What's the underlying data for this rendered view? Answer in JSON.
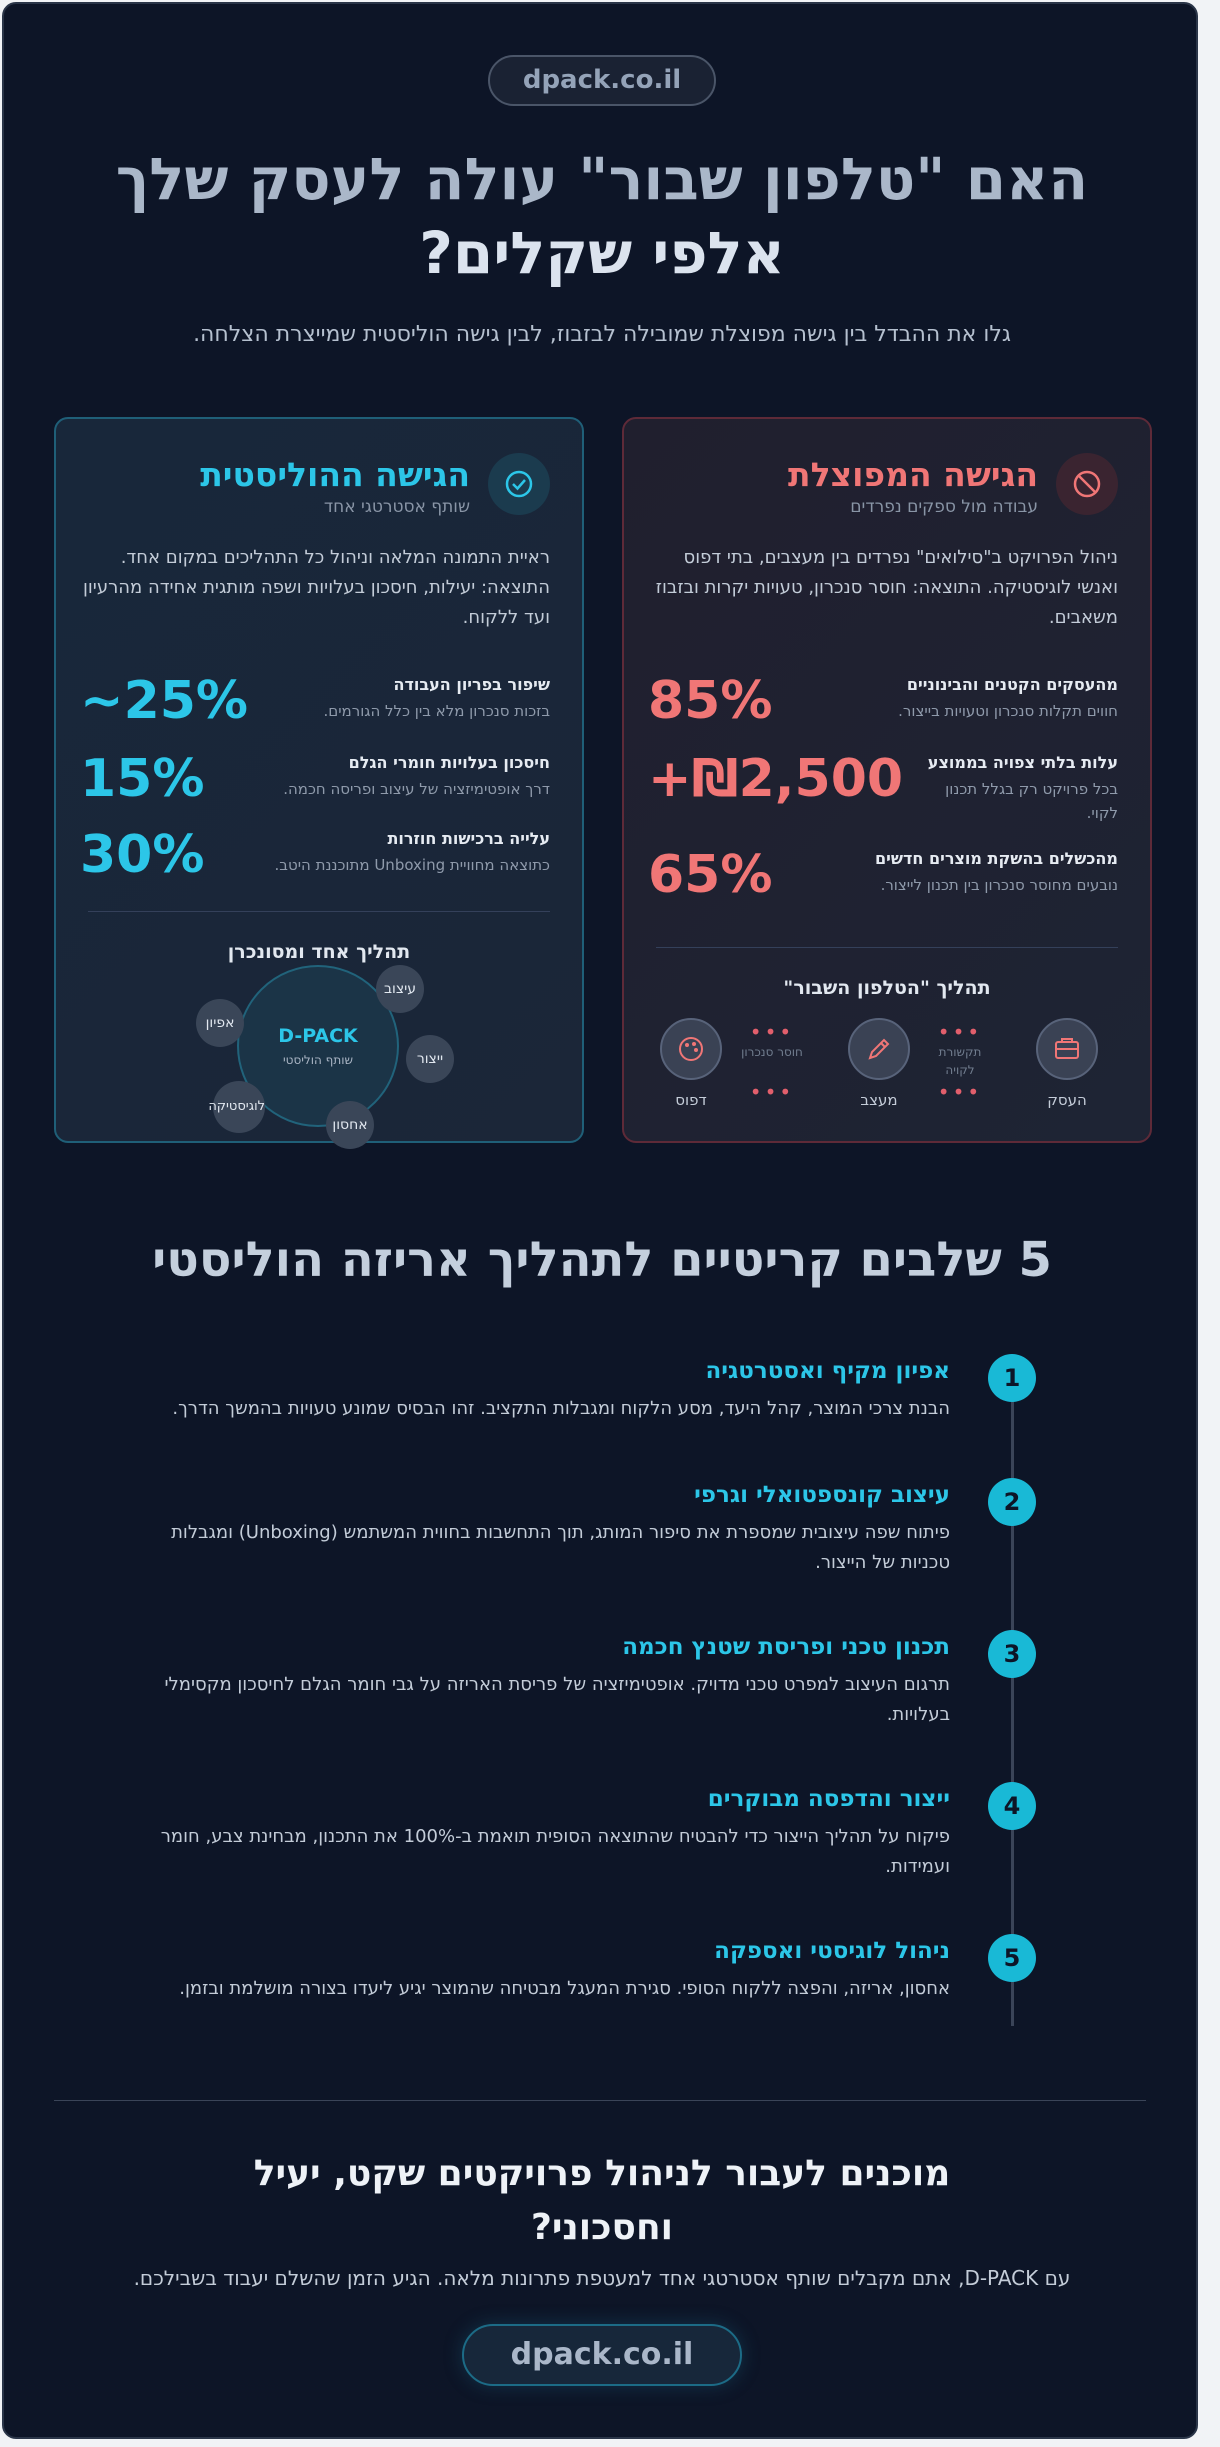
{
  "header": {
    "domain": "dpack.co.il",
    "title_part1": "האם \"טלפון שבור\" עולה לעסק שלך",
    "title_part2": "אלפי שקלים?",
    "subtitle": "גלו את ההבדל בין גישה מפוצלת שמובילה לבזבוז, לבין גישה הוליסטית שמייצרת הצלחה."
  },
  "holistic": {
    "title": "הגישה ההוליסטית",
    "subtitle": "שותף אסטרטגי אחד",
    "description": "ראיית התמונה המלאה וניהול כל התהליכים במקום אחד. התוצאה: יעילות, חיסכון בעלויות ושפה מותגית אחידה מהרעיון ועד ללקוח.",
    "icon": "check-circle-icon",
    "stats": [
      {
        "value": "~25%",
        "title": "שיפור בפריון העבודה",
        "desc": "בזכות סנכרון מלא בין כלל הגורמים."
      },
      {
        "value": "15%",
        "title": "חיסכון בעלויות חומרי הגלם",
        "desc": "דרך אופטימיזציה של עיצוב ופריסה חכמה."
      },
      {
        "value": "30%",
        "title": "עלייה ברכישות חוזרות",
        "desc": "כתוצאה מחוויית Unboxing מתוכננת היטב."
      }
    ],
    "process_title": "תהליך אחד ומסונכרן",
    "hub_name": "D-PACK",
    "hub_sub": "שותף הוליסטי",
    "satellites": [
      "עיצוב",
      "ייצור",
      "אחסון",
      "לוגיסטיקה",
      "אפיון"
    ]
  },
  "fragmented": {
    "title": "הגישה המפוצלת",
    "subtitle": "עבודה מול ספקים נפרדים",
    "description": "ניהול הפרויקט ב\"סילואים\" נפרדים בין מעצבים, בתי דפוס ואנשי לוגיסטיקה. התוצאה: חוסר סנכרון, טעויות יקרות ובזבוז משאבים.",
    "icon": "ban-icon",
    "stats": [
      {
        "value": "85%",
        "title": "מהעסקים הקטנים והבינוניים",
        "desc": "חווים תקלות סנכרון וטעויות בייצור."
      },
      {
        "value": "+₪2,500",
        "title": "עלות בלתי צפויה בממוצע",
        "desc": "בכל פרויקט רק בגלל תכנון לקוי."
      },
      {
        "value": "65%",
        "title": "מהכשלים בהשקת מוצרים חדשים",
        "desc": "נובעים מחוסר סנכרון בין תכנון לייצור."
      }
    ],
    "process_title": "תהליך \"הטלפון השבור\"",
    "steps": [
      {
        "label": "העסק",
        "icon": "briefcase-icon"
      },
      {
        "label": "מעצב",
        "icon": "pencil-icon"
      },
      {
        "label": "דפוס",
        "icon": "palette-icon"
      }
    ],
    "gaps": [
      "תקשורת לקויה",
      "חוסר סנכרון"
    ]
  },
  "steps_section": {
    "title": "5 שלבים קריטיים לתהליך אריזה הוליסטי",
    "steps": [
      {
        "num": "1",
        "title": "אפיון מקיף ואסטרטגיה",
        "desc": "הבנת צרכי המוצר, קהל היעד, מסע הלקוח ומגבלות התקציב. זהו הבסיס שמונע טעויות בהמשך הדרך."
      },
      {
        "num": "2",
        "title": "עיצוב קונספטואלי וגרפי",
        "desc": "פיתוח שפה עיצובית שמספרת את סיפור המותג, תוך התחשבות בחווית המשתמש (Unboxing) ומגבלות טכניות של הייצור."
      },
      {
        "num": "3",
        "title": "תכנון טכני ופריסת שטנץ חכמה",
        "desc": "תרגום העיצוב למפרט טכני מדויק. אופטימיזציה של פריסת האריזה על גבי חומר הגלם לחיסכון מקסימלי בעלויות."
      },
      {
        "num": "4",
        "title": "ייצור והדפסה מבוקרים",
        "desc": "פיקוח על תהליך הייצור כדי להבטיח שהתוצאה הסופית תואמת ב-100% את התכנון, מבחינת צבע, חומר ועמידות."
      },
      {
        "num": "5",
        "title": "ניהול לוגיסטי ואספקה",
        "desc": "אחסון, אריזה, והפצה ללקוח הסופי. סגירת המעגל מבטיחה שהמוצר יגיע ליעדו בצורה מושלמת ובזמן."
      }
    ]
  },
  "cta": {
    "title": "מוכנים לעבור לניהול פרויקטים שקט, יעיל וחסכוני?",
    "desc": "עם D-PACK, אתם מקבלים שותף אסטרטגי אחד למעטפת פתרונות מלאה. הגיע הזמן שהשלם יעבוד בשבילכם.",
    "button": "dpack.co.il"
  },
  "colors": {
    "background": "#0d1527",
    "holistic_accent": "#2cc6e8",
    "fragmented_accent": "#f07676",
    "timeline_accent": "#19b9d6"
  }
}
